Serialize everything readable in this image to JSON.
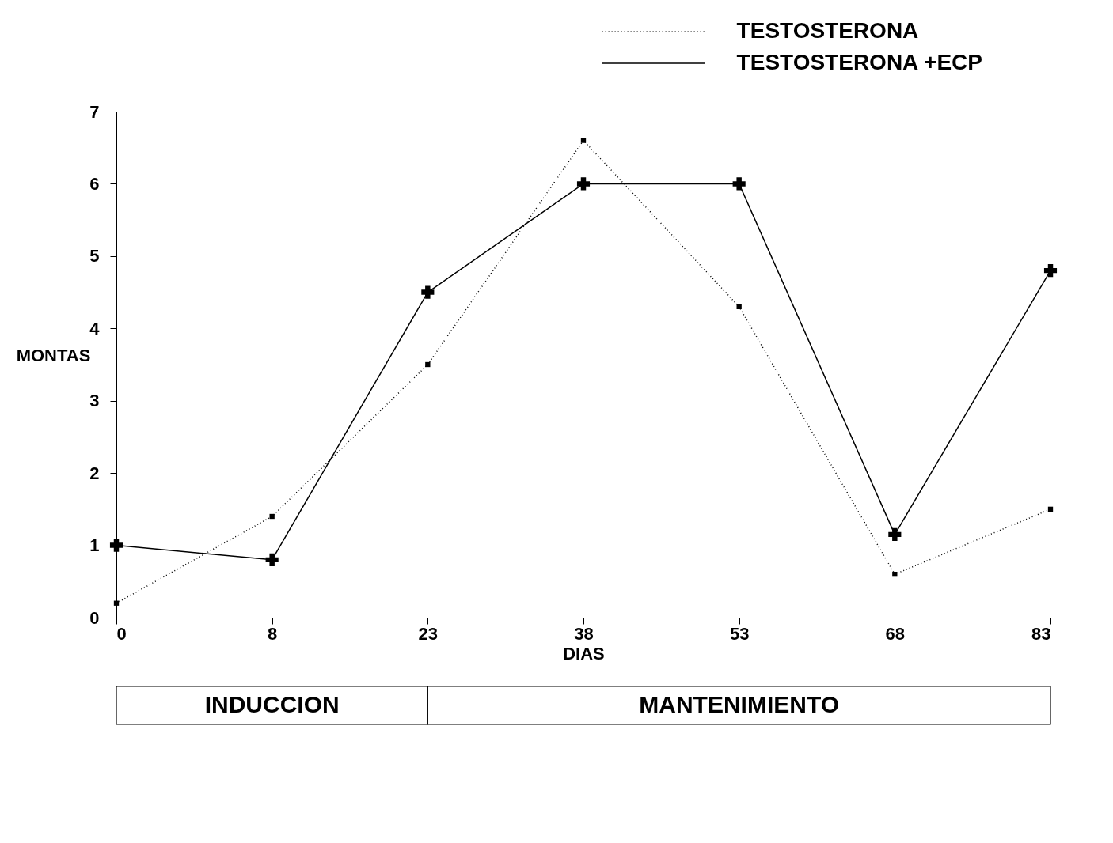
{
  "chart_data": {
    "type": "line",
    "xlabel": "DIAS",
    "ylabel": "MONTAS",
    "categories": [
      "0",
      "8",
      "23",
      "38",
      "53",
      "68",
      "83"
    ],
    "series": [
      {
        "name": "TESTOSTERONA",
        "color": "#000000",
        "line_style": "dotted",
        "marker": "square",
        "values": [
          0.2,
          1.4,
          3.5,
          6.6,
          4.3,
          0.6,
          1.5
        ]
      },
      {
        "name": "TESTOSTERONA +ECP",
        "color": "#000000",
        "line_style": "solid",
        "marker": "cross",
        "values": [
          1.0,
          0.8,
          4.5,
          6.0,
          6.0,
          1.15,
          4.8
        ]
      }
    ],
    "ylim": [
      0,
      7
    ],
    "yticks": [
      0,
      1,
      2,
      3,
      4,
      5,
      6,
      7
    ],
    "grid": false,
    "legend": "top right",
    "annotations": [
      "INDUCCION",
      "MANTENIMIENTO"
    ]
  }
}
